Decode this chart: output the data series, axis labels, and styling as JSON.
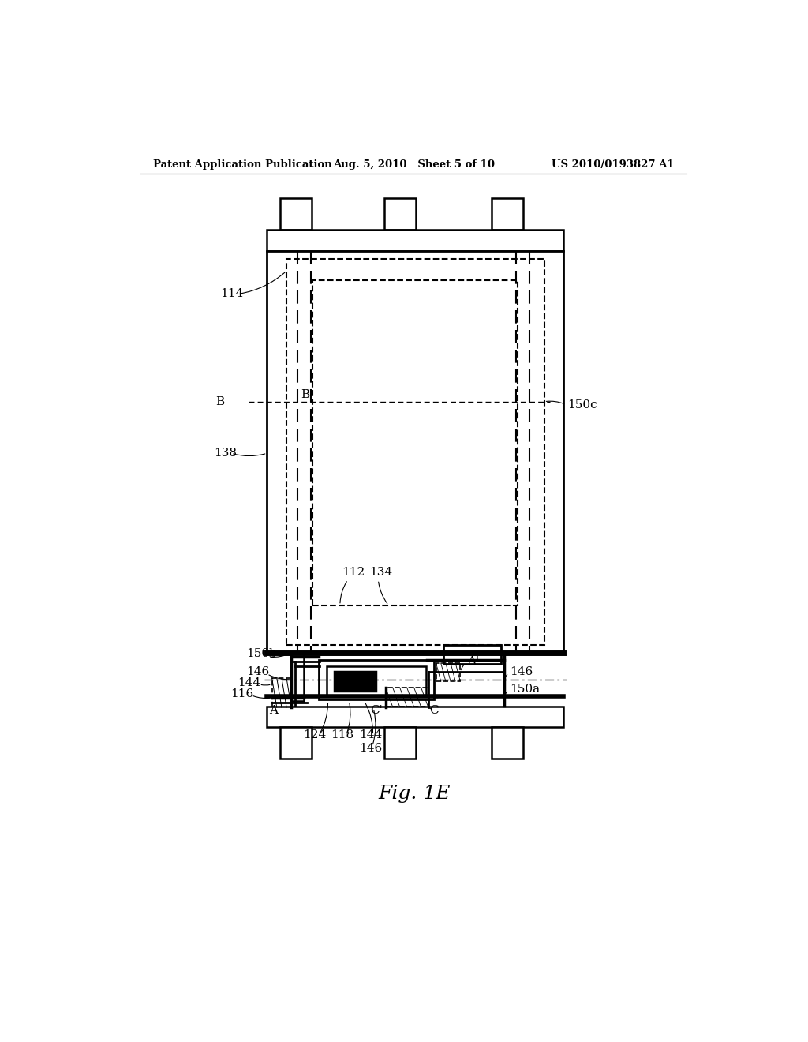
{
  "title": "Fig. 1E",
  "header_left": "Patent Application Publication",
  "header_center": "Aug. 5, 2010   Sheet 5 of 10",
  "header_right": "US 2010/0193827 A1",
  "background": "#ffffff"
}
